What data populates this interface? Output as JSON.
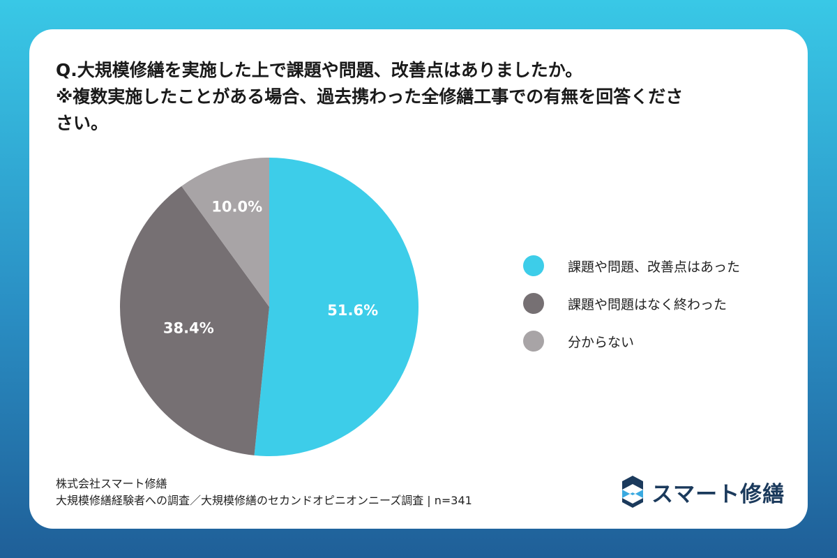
{
  "title_lines": [
    "Q.大規模修繕を実施した上で課題や問題、改善点はありましたか。",
    "※複数実施したことがある場合、過去携わった全修繕工事での有無を回答くださ",
    "さい。"
  ],
  "chart_data": {
    "type": "pie",
    "categories": [
      "課題や問題、改善点はあった",
      "課題や問題はなく終わった",
      "分からない"
    ],
    "values": [
      51.6,
      38.4,
      10.0
    ],
    "labels": [
      "51.6%",
      "38.4%",
      "10.0%"
    ],
    "colors": [
      "#3dcde9",
      "#767073",
      "#a8a4a6"
    ],
    "legend_position": "right"
  },
  "footer": {
    "company": "株式会社スマート修繕",
    "source": "大規模修繕経験者への調査／大規模修繕のセカンドオピニオンニーズ調査 | n=341"
  },
  "logo": {
    "text": "スマート修繕",
    "color": "#1b3a5c"
  }
}
